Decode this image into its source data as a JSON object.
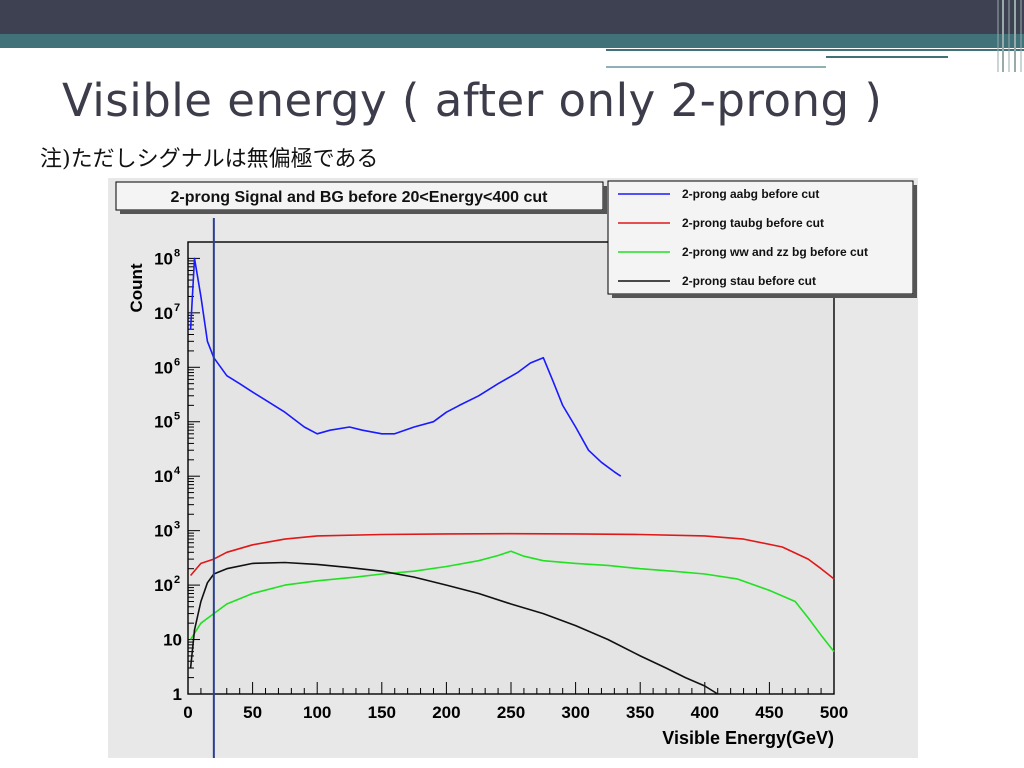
{
  "slide": {
    "title": "Visible energy ( after only 2-prong )",
    "note": "注)ただしシグナルは無偏極である"
  },
  "colors": {
    "header_dark": "#3e4151",
    "header_teal": "#41727a",
    "plot_background": "#e4e4e4",
    "aabg": "#1a1aff",
    "taubg": "#e01818",
    "wwzz": "#22e022",
    "stau": "#111111",
    "cut_line": "#2a3f8f"
  },
  "chart_data": {
    "type": "line",
    "title": "2-prong Signal and BG before 20<Energy<400 cut",
    "xlabel": "Visible Energy(GeV)",
    "ylabel": "Count",
    "xlim": [
      0,
      500
    ],
    "ylim": [
      1,
      200000000
    ],
    "y_scale": "log",
    "x_ticks": [
      "0",
      "50",
      "100",
      "150",
      "200",
      "250",
      "300",
      "350",
      "400",
      "450",
      "500"
    ],
    "y_ticks": [
      {
        "value": 1,
        "base": "1",
        "exp": ""
      },
      {
        "value": 10,
        "base": "10",
        "exp": ""
      },
      {
        "value": 100,
        "base": "10",
        "exp": "2"
      },
      {
        "value": 1000,
        "base": "10",
        "exp": "3"
      },
      {
        "value": 10000,
        "base": "10",
        "exp": "4"
      },
      {
        "value": 100000,
        "base": "10",
        "exp": "5"
      },
      {
        "value": 1000000,
        "base": "10",
        "exp": "6"
      },
      {
        "value": 10000000,
        "base": "10",
        "exp": "7"
      },
      {
        "value": 100000000,
        "base": "10",
        "exp": "8"
      }
    ],
    "legend_position": "top-right",
    "cut_marker_x": 20,
    "series": [
      {
        "name": "2-prong aabg before cut",
        "color_key": "aabg",
        "x": [
          2,
          5,
          10,
          15,
          20,
          30,
          40,
          50,
          60,
          75,
          90,
          100,
          110,
          125,
          135,
          150,
          160,
          175,
          190,
          200,
          210,
          225,
          240,
          255,
          265,
          275,
          282,
          290,
          300,
          310,
          320,
          330,
          335
        ],
        "y": [
          5000000,
          100000000,
          20000000,
          3000000,
          1500000,
          700000,
          500000,
          350000,
          250000,
          150000,
          80000,
          60000,
          70000,
          80000,
          70000,
          60000,
          60000,
          80000,
          100000,
          150000,
          200000,
          300000,
          500000,
          800000,
          1200000,
          1500000,
          600000,
          200000,
          80000,
          30000,
          18000,
          12000,
          10000
        ]
      },
      {
        "name": "2-prong taubg before cut",
        "color_key": "taubg",
        "x": [
          2,
          10,
          20,
          30,
          50,
          75,
          100,
          150,
          200,
          250,
          300,
          350,
          400,
          430,
          460,
          480,
          490,
          500
        ],
        "y": [
          150,
          250,
          300,
          400,
          550,
          700,
          800,
          850,
          870,
          880,
          870,
          850,
          800,
          700,
          500,
          300,
          200,
          130
        ]
      },
      {
        "name": "2-prong ww and zz bg before cut",
        "color_key": "wwzz",
        "x": [
          2,
          10,
          20,
          30,
          50,
          75,
          100,
          130,
          150,
          175,
          200,
          225,
          240,
          250,
          260,
          275,
          300,
          325,
          350,
          375,
          400,
          425,
          450,
          470,
          480,
          490,
          500
        ],
        "y": [
          10,
          20,
          30,
          45,
          70,
          100,
          120,
          140,
          160,
          180,
          220,
          280,
          350,
          420,
          340,
          280,
          250,
          230,
          200,
          180,
          160,
          130,
          80,
          50,
          25,
          12,
          6
        ]
      },
      {
        "name": "2-prong stau before cut",
        "color_key": "stau",
        "x": [
          2,
          5,
          10,
          15,
          20,
          30,
          50,
          75,
          100,
          125,
          150,
          175,
          200,
          225,
          250,
          275,
          300,
          325,
          350,
          370,
          385,
          400,
          410
        ],
        "y": [
          3,
          15,
          50,
          110,
          160,
          200,
          250,
          260,
          240,
          210,
          180,
          140,
          100,
          70,
          45,
          30,
          18,
          10,
          5,
          3,
          2,
          1.4,
          1
        ]
      }
    ]
  }
}
